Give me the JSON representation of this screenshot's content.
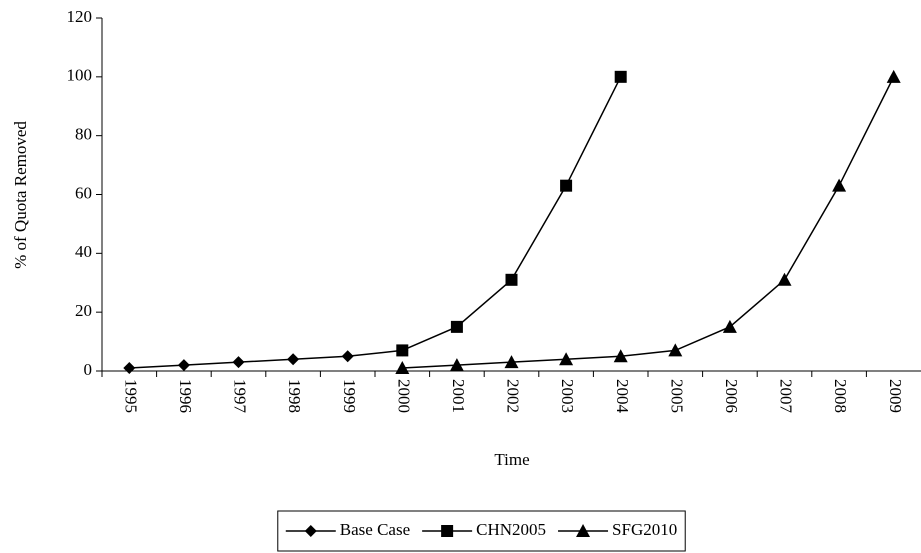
{
  "chart_data": {
    "type": "line",
    "x_label": "Time",
    "y_label": "% of Quota Removed",
    "categories": [
      "1995",
      "1996",
      "1997",
      "1998",
      "1999",
      "2000",
      "2001",
      "2002",
      "2003",
      "2004",
      "2005",
      "2006",
      "2007",
      "2008",
      "2009"
    ],
    "series": [
      {
        "name": "Base Case",
        "color": "#000000",
        "marker": "diamond",
        "values": [
          1,
          2,
          3,
          4,
          5,
          7,
          null,
          null,
          null,
          null,
          null,
          null,
          null,
          null,
          null
        ]
      },
      {
        "name": "CHN2005",
        "color": "#000000",
        "marker": "square",
        "values": [
          null,
          null,
          null,
          null,
          null,
          7,
          15,
          31,
          63,
          100,
          null,
          null,
          null,
          null,
          null
        ]
      },
      {
        "name": "SFG2010",
        "color": "#000000",
        "marker": "triangle",
        "values": [
          null,
          null,
          null,
          null,
          null,
          1,
          2,
          3,
          4,
          5,
          7,
          15,
          31,
          63,
          100
        ]
      }
    ],
    "ylim": [
      0,
      120
    ],
    "yticks": [
      0,
      20,
      40,
      60,
      80,
      100,
      120
    ],
    "grid": false,
    "legend": "bottom"
  }
}
